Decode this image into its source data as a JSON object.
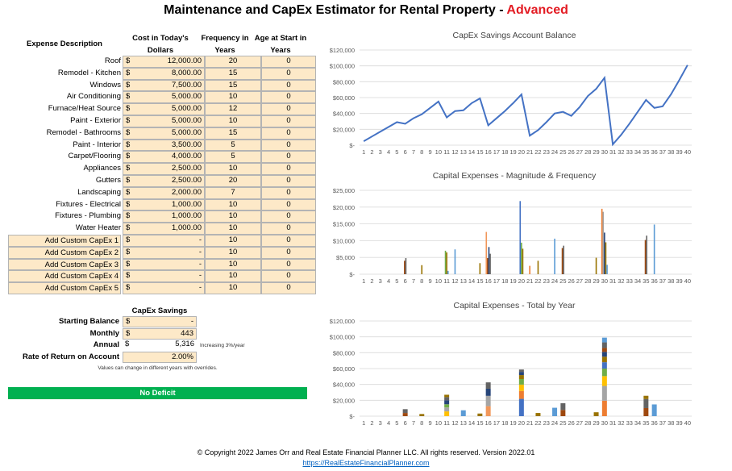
{
  "title": {
    "main": "Maintenance and CapEx Estimator for Rental Property - ",
    "accent": "Advanced",
    "accent_color": "#e31b23"
  },
  "table": {
    "headers": {
      "description": "Expense Description",
      "cost": "Cost in Today's Dollars",
      "frequency": "Frequency in Years",
      "age": "Age at Start in Years"
    },
    "currency_symbol": "$",
    "rows": [
      {
        "label": "Roof",
        "cost": "12,000.00",
        "freq": "20",
        "age": "0",
        "custom": false
      },
      {
        "label": "Remodel - Kitchen",
        "cost": "8,000.00",
        "freq": "15",
        "age": "0",
        "custom": false
      },
      {
        "label": "Windows",
        "cost": "7,500.00",
        "freq": "15",
        "age": "0",
        "custom": false
      },
      {
        "label": "Air Conditioning",
        "cost": "5,000.00",
        "freq": "10",
        "age": "0",
        "custom": false
      },
      {
        "label": "Furnace/Heat Source",
        "cost": "5,000.00",
        "freq": "12",
        "age": "0",
        "custom": false
      },
      {
        "label": "Paint - Exterior",
        "cost": "5,000.00",
        "freq": "10",
        "age": "0",
        "custom": false
      },
      {
        "label": "Remodel - Bathrooms",
        "cost": "5,000.00",
        "freq": "15",
        "age": "0",
        "custom": false
      },
      {
        "label": "Paint - Interior",
        "cost": "3,500.00",
        "freq": "5",
        "age": "0",
        "custom": false
      },
      {
        "label": "Carpet/Flooring",
        "cost": "4,000.00",
        "freq": "5",
        "age": "0",
        "custom": false
      },
      {
        "label": "Appliances",
        "cost": "2,500.00",
        "freq": "10",
        "age": "0",
        "custom": false
      },
      {
        "label": "Gutters",
        "cost": "2,500.00",
        "freq": "20",
        "age": "0",
        "custom": false
      },
      {
        "label": "Landscaping",
        "cost": "2,000.00",
        "freq": "7",
        "age": "0",
        "custom": false
      },
      {
        "label": "Fixtures - Electrical",
        "cost": "1,000.00",
        "freq": "10",
        "age": "0",
        "custom": false
      },
      {
        "label": "Fixtures - Plumbing",
        "cost": "1,000.00",
        "freq": "10",
        "age": "0",
        "custom": false
      },
      {
        "label": "Water Heater",
        "cost": "1,000.00",
        "freq": "10",
        "age": "0",
        "custom": false
      },
      {
        "label": "Add Custom CapEx 1",
        "cost": "-",
        "freq": "10",
        "age": "0",
        "custom": true
      },
      {
        "label": "Add Custom CapEx 2",
        "cost": "-",
        "freq": "10",
        "age": "0",
        "custom": true
      },
      {
        "label": "Add Custom CapEx 3",
        "cost": "-",
        "freq": "10",
        "age": "0",
        "custom": true
      },
      {
        "label": "Add Custom CapEx 4",
        "cost": "-",
        "freq": "10",
        "age": "0",
        "custom": true
      },
      {
        "label": "Add Custom CapEx 5",
        "cost": "-",
        "freq": "10",
        "age": "0",
        "custom": true
      }
    ]
  },
  "savings": {
    "header": "CapEx Savings",
    "starting_balance_label": "Starting Balance",
    "starting_balance_value": "-",
    "monthly_label": "Monthly",
    "monthly_value": "443",
    "annual_label": "Annual",
    "annual_value": "5,316",
    "annual_note": "Increasing 3%/year",
    "rate_label": "Rate of Return on Account",
    "rate_value": "2.00%",
    "override_note": "Values can change in different years with overrides."
  },
  "status_bar": {
    "label": "No Deficit",
    "color": "#00b050"
  },
  "colors": {
    "input_fill": "#fde9c8",
    "line": "#4472c4",
    "series": [
      "#4472c4",
      "#ed7d31",
      "#a5a5a5",
      "#ffc000",
      "#5b9bd5",
      "#70ad47",
      "#264478",
      "#9e480e",
      "#636363",
      "#997300",
      "#255e91",
      "#43682b",
      "#698ed0",
      "#f1975a",
      "#b7b7b7"
    ]
  },
  "chart_data": [
    {
      "type": "line",
      "title": "CapEx Savings Account Balance",
      "x": [
        1,
        2,
        3,
        4,
        5,
        6,
        7,
        8,
        9,
        10,
        11,
        12,
        13,
        14,
        15,
        16,
        17,
        18,
        19,
        20,
        21,
        22,
        23,
        24,
        25,
        26,
        27,
        28,
        29,
        30,
        31,
        32,
        33,
        34,
        35,
        36,
        37,
        38,
        39,
        40
      ],
      "values": [
        5000,
        11000,
        17000,
        23000,
        29000,
        27000,
        34000,
        39000,
        47000,
        55000,
        35000,
        43000,
        44000,
        53000,
        59000,
        25000,
        34000,
        43000,
        53000,
        64000,
        12000,
        19000,
        29000,
        40000,
        42000,
        37000,
        48000,
        62000,
        71000,
        85000,
        1000,
        13000,
        27000,
        42000,
        57000,
        47000,
        49000,
        64000,
        82000,
        101000
      ],
      "ylim": [
        0,
        120000
      ],
      "yticks": [
        "$-",
        "$20,000",
        "$40,000",
        "$60,000",
        "$80,000",
        "$100,000",
        "$120,000"
      ],
      "grid": true
    },
    {
      "type": "bar",
      "title": "Capital Expenses - Magnitude & Frequency",
      "x": [
        1,
        2,
        3,
        4,
        5,
        6,
        7,
        8,
        9,
        10,
        11,
        12,
        13,
        14,
        15,
        16,
        17,
        18,
        19,
        20,
        21,
        22,
        23,
        24,
        25,
        26,
        27,
        28,
        29,
        30,
        31,
        32,
        33,
        34,
        35,
        36,
        37,
        38,
        39,
        40
      ],
      "ylim": [
        0,
        25000
      ],
      "yticks": [
        "$-",
        "$5,000",
        "$10,000",
        "$15,000",
        "$20,000",
        "$25,000"
      ],
      "grid": true,
      "bars": [
        {
          "x": 6,
          "values": [
            4000,
            4800
          ],
          "colors": [
            "#9e480e",
            "#636363"
          ]
        },
        {
          "x": 8,
          "values": [
            2700
          ],
          "colors": [
            "#997300"
          ]
        },
        {
          "x": 11,
          "values": [
            7000,
            6500,
            1000
          ],
          "colors": [
            "#70ad47",
            "#997300",
            "#5b9bd5"
          ]
        },
        {
          "x": 12,
          "values": [
            7400
          ],
          "colors": [
            "#5b9bd5"
          ]
        },
        {
          "x": 15,
          "values": [
            3300
          ],
          "colors": [
            "#997300"
          ]
        },
        {
          "x": 16,
          "values": [
            12600,
            4800,
            8100,
            6100
          ],
          "colors": [
            "#f1975a",
            "#9e480e",
            "#264478",
            "#636363"
          ]
        },
        {
          "x": 20,
          "values": [
            21800,
            9400,
            7600
          ],
          "colors": [
            "#4472c4",
            "#70ad47",
            "#997300"
          ]
        },
        {
          "x": 21,
          "values": [
            2500
          ],
          "colors": [
            "#ed7d31"
          ]
        },
        {
          "x": 22,
          "values": [
            4000
          ],
          "colors": [
            "#997300"
          ]
        },
        {
          "x": 24,
          "values": [
            10600
          ],
          "colors": [
            "#5b9bd5"
          ]
        },
        {
          "x": 25,
          "values": [
            7800,
            8500
          ],
          "colors": [
            "#9e480e",
            "#636363"
          ]
        },
        {
          "x": 29,
          "values": [
            4900
          ],
          "colors": [
            "#997300"
          ]
        },
        {
          "x": 30,
          "values": [
            19500,
            18600,
            12400,
            9500,
            2800
          ],
          "colors": [
            "#ed7d31",
            "#a5a5a5",
            "#264478",
            "#997300",
            "#5b9bd5"
          ]
        },
        {
          "x": 35,
          "values": [
            10200,
            11500
          ],
          "colors": [
            "#9e480e",
            "#636363"
          ]
        },
        {
          "x": 36,
          "values": [
            14800
          ],
          "colors": [
            "#5b9bd5"
          ]
        }
      ]
    },
    {
      "type": "bar",
      "title": "Capital Expenses - Total by Year",
      "x": [
        1,
        2,
        3,
        4,
        5,
        6,
        7,
        8,
        9,
        10,
        11,
        12,
        13,
        14,
        15,
        16,
        17,
        18,
        19,
        20,
        21,
        22,
        23,
        24,
        25,
        26,
        27,
        28,
        29,
        30,
        31,
        32,
        33,
        34,
        35,
        36,
        37,
        38,
        39,
        40
      ],
      "ylim": [
        0,
        120000
      ],
      "yticks": [
        "$-",
        "$20,000",
        "$40,000",
        "$60,000",
        "$80,000",
        "$100,000",
        "$120,000"
      ],
      "grid": true,
      "stacked": true,
      "stacks": [
        {
          "x": 6,
          "values": [
            4000,
            4800
          ],
          "colors": [
            "#9e480e",
            "#636363"
          ]
        },
        {
          "x": 8,
          "values": [
            2700
          ],
          "colors": [
            "#997300"
          ]
        },
        {
          "x": 11,
          "values": [
            6000,
            5000,
            4000,
            5000,
            4000,
            3000
          ],
          "colors": [
            "#ffc000",
            "#a5a5a5",
            "#70ad47",
            "#264478",
            "#636363",
            "#997300"
          ]
        },
        {
          "x": 13,
          "values": [
            7400
          ],
          "colors": [
            "#5b9bd5"
          ]
        },
        {
          "x": 15,
          "values": [
            3300
          ],
          "colors": [
            "#997300"
          ]
        },
        {
          "x": 16,
          "values": [
            12600,
            13000,
            9000,
            8000
          ],
          "colors": [
            "#f1975a",
            "#a5a5a5",
            "#264478",
            "#636363"
          ]
        },
        {
          "x": 20,
          "values": [
            21800,
            10000,
            8000,
            7000,
            5000,
            4000,
            3000
          ],
          "colors": [
            "#4472c4",
            "#ed7d31",
            "#ffc000",
            "#70ad47",
            "#997300",
            "#264478",
            "#636363"
          ]
        },
        {
          "x": 22,
          "values": [
            4000
          ],
          "colors": [
            "#997300"
          ]
        },
        {
          "x": 24,
          "values": [
            10600
          ],
          "colors": [
            "#5b9bd5"
          ]
        },
        {
          "x": 25,
          "values": [
            7800,
            8500
          ],
          "colors": [
            "#9e480e",
            "#636363"
          ]
        },
        {
          "x": 29,
          "values": [
            4900
          ],
          "colors": [
            "#997300"
          ]
        },
        {
          "x": 30,
          "values": [
            19500,
            18600,
            12400,
            9500,
            8000,
            7000,
            6000,
            5000,
            7000,
            6000
          ],
          "colors": [
            "#ed7d31",
            "#a5a5a5",
            "#ffc000",
            "#70ad47",
            "#4472c4",
            "#997300",
            "#264478",
            "#9e480e",
            "#636363",
            "#5b9bd5"
          ]
        },
        {
          "x": 35,
          "values": [
            10200,
            11500,
            4000
          ],
          "colors": [
            "#9e480e",
            "#636363",
            "#997300"
          ]
        },
        {
          "x": 36,
          "values": [
            14800
          ],
          "colors": [
            "#5b9bd5"
          ]
        }
      ]
    }
  ],
  "footer": {
    "copyright": "© Copyright 2022 James Orr and Real Estate Financial Planner LLC. All rights reserved. Version 2022.01",
    "link": "https://RealEstateFinancialPlanner.com"
  }
}
